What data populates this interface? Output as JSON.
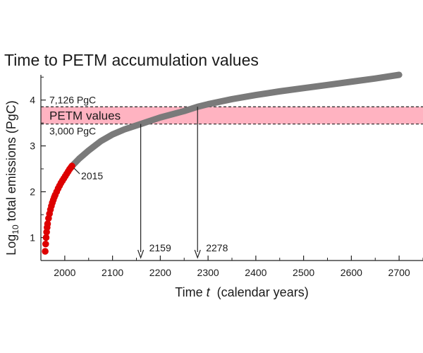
{
  "chart_data": {
    "type": "line",
    "title": "Time to PETM accumulation values",
    "xlabel": "Time t (calendar years)",
    "xlabel_parts": {
      "before": "Time ",
      "italic": "t",
      "after": "  (calendar years)"
    },
    "ylabel": "Log10 total emissions (PgC)",
    "ylabel_parts": {
      "before": "Log",
      "sub": "10",
      "after": " total emissions (PgC)"
    },
    "xlim": [
      1950,
      2750
    ],
    "ylim": [
      0.5,
      4.55
    ],
    "x_ticks": [
      2000,
      2100,
      2200,
      2300,
      2400,
      2500,
      2600,
      2700
    ],
    "x_tick_labels": [
      "2000",
      "2100",
      "2200",
      "2300",
      "2400",
      "2500",
      "2600",
      "2700"
    ],
    "y_ticks": [
      1,
      2,
      3,
      4
    ],
    "y_tick_labels": [
      "1",
      "2",
      "3",
      "4"
    ],
    "grid": false,
    "band": {
      "label": "PETM values",
      "y_low": 3.477,
      "y_high": 3.853,
      "upper_label": "7,126 PgC",
      "lower_label": "3,000 PgC",
      "color": "#ffb3c1"
    },
    "series": [
      {
        "color": "#dd0000",
        "marker": "circle",
        "x": [
          1959,
          1960,
          1961,
          1962,
          1963,
          1964,
          1966,
          1968,
          1970,
          1972,
          1974,
          1976,
          1978,
          1980,
          1983,
          1986,
          1989,
          1992,
          1995,
          1998,
          2001,
          2004,
          2007,
          2010,
          2013,
          2015
        ],
        "y": [
          0.7,
          0.86,
          1.0,
          1.12,
          1.22,
          1.3,
          1.42,
          1.52,
          1.61,
          1.69,
          1.76,
          1.82,
          1.88,
          1.93,
          2.0,
          2.07,
          2.13,
          2.19,
          2.24,
          2.29,
          2.34,
          2.39,
          2.44,
          2.49,
          2.53,
          2.56
        ]
      },
      {
        "color": "#7a7a7a",
        "marker": "line",
        "x": [
          2015,
          2030,
          2050,
          2075,
          2100,
          2125,
          2159,
          2200,
          2250,
          2278,
          2300,
          2350,
          2400,
          2450,
          2500,
          2550,
          2600,
          2650,
          2700
        ],
        "y": [
          2.56,
          2.72,
          2.9,
          3.1,
          3.25,
          3.36,
          3.477,
          3.62,
          3.76,
          3.853,
          3.91,
          4.02,
          4.11,
          4.19,
          4.26,
          4.33,
          4.4,
          4.47,
          4.55
        ]
      }
    ],
    "annotations": [
      {
        "text": "2015",
        "x": 2015,
        "y": 2.56
      },
      {
        "text": "2159",
        "x": 2159,
        "y": 3.477
      },
      {
        "text": "2278",
        "x": 2278,
        "y": 3.853
      }
    ]
  }
}
